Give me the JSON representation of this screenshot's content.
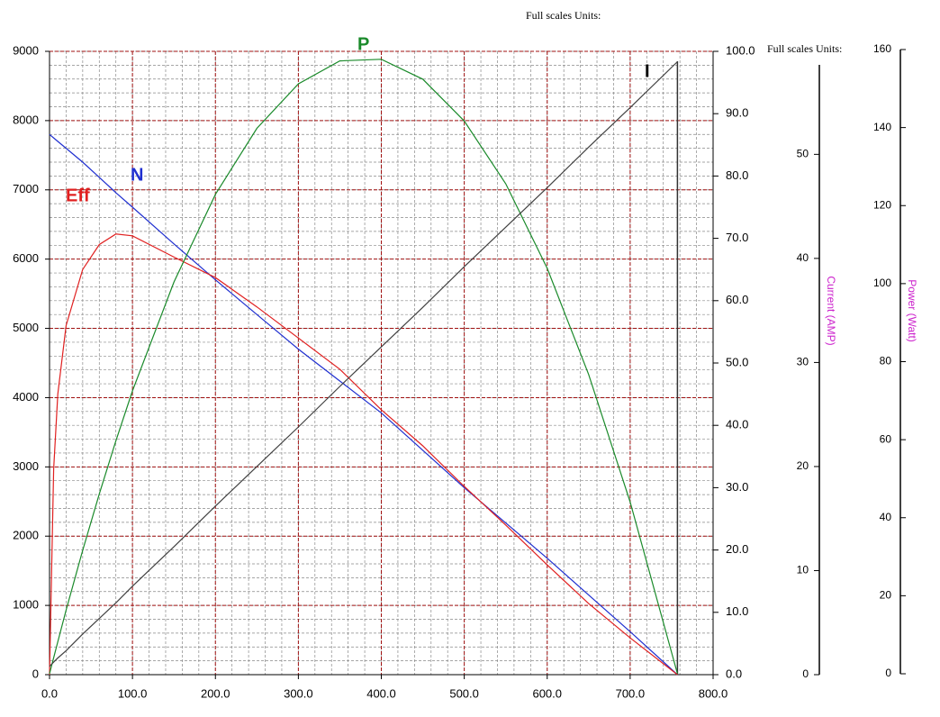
{
  "chart_data": {
    "type": "line",
    "headings": [
      "Full scales Units:",
      "Full scales Units:"
    ],
    "x": [
      0,
      5,
      10,
      20,
      40,
      60,
      80,
      100,
      150,
      200,
      250,
      300,
      350,
      400,
      450,
      500,
      550,
      600,
      650,
      700,
      757
    ],
    "series": [
      {
        "name": "N",
        "color": "#1f2fd0",
        "axis": "y",
        "values": [
          7800,
          7750,
          7700,
          7600,
          7400,
          7180,
          6960,
          6750,
          6220,
          5700,
          5200,
          4700,
          4240,
          3780,
          3240,
          2700,
          2190,
          1680,
          1150,
          620,
          0
        ]
      },
      {
        "name": "Eff",
        "color": "#e02020",
        "axis": "y2",
        "values": [
          0,
          33,
          45,
          56,
          65,
          69,
          70.7,
          70.4,
          67,
          63.7,
          59,
          54,
          49,
          42.5,
          36.7,
          30.2,
          24,
          17.6,
          11.4,
          5.9,
          0
        ]
      },
      {
        "name": "P",
        "color": "#1a8a2a",
        "axis": "y4",
        "values": [
          0,
          4.1,
          8.2,
          16.3,
          31.6,
          46.1,
          59.7,
          72.5,
          100.4,
          122.9,
          139.8,
          151.2,
          157.1,
          157.5,
          152.4,
          141.7,
          125.6,
          103.9,
          76.7,
          44.0,
          0
        ]
      },
      {
        "name": "I",
        "color": "#404040",
        "axis": "y3",
        "values": [
          0.8,
          1.2,
          1.6,
          2.3,
          3.9,
          5.4,
          6.9,
          8.5,
          12.3,
          16.2,
          20.0,
          23.8,
          27.7,
          31.5,
          35.3,
          39.2,
          43.0,
          46.8,
          50.7,
          54.5,
          58.9
        ]
      }
    ],
    "label_colors": {
      "N": "#1f2fd0",
      "Eff": "#e02020",
      "P": "#1a8a2a",
      "I": "#000000"
    },
    "xlim": [
      0,
      800
    ],
    "xticks": [
      {
        "value": 0,
        "label": "0.0"
      },
      {
        "value": 100,
        "label": "100.0"
      },
      {
        "value": 200,
        "label": "200.0"
      },
      {
        "value": 300,
        "label": "300.0"
      },
      {
        "value": 400,
        "label": "400.0"
      },
      {
        "value": 500,
        "label": "500.0"
      },
      {
        "value": 600,
        "label": "600.0"
      },
      {
        "value": 700,
        "label": "700.0"
      },
      {
        "value": 800,
        "label": "800.0"
      }
    ],
    "ylim": [
      0,
      9000
    ],
    "yticks": [
      0,
      1000,
      2000,
      3000,
      4000,
      5000,
      6000,
      7000,
      8000,
      9000
    ],
    "y2lim": [
      0,
      100
    ],
    "y2ticks": [
      {
        "value": 0,
        "label": "0.0"
      },
      {
        "value": 10,
        "label": "10.0"
      },
      {
        "value": 20,
        "label": "20.0"
      },
      {
        "value": 30,
        "label": "30.0"
      },
      {
        "value": 40,
        "label": "40.0"
      },
      {
        "value": 50,
        "label": "50.0"
      },
      {
        "value": 60,
        "label": "60.0"
      },
      {
        "value": 70,
        "label": "70.0"
      },
      {
        "value": 80,
        "label": "80.0"
      },
      {
        "value": 90,
        "label": "90.0"
      },
      {
        "value": 100,
        "label": "100.0"
      }
    ],
    "y3label": "Current (AMP)",
    "y3lim": [
      0,
      58.6
    ],
    "y3ticks": [
      0,
      10,
      20,
      30,
      40,
      50
    ],
    "y4label": "Power (Watt)",
    "y4lim": [
      0,
      160
    ],
    "y4ticks": [
      0,
      20,
      40,
      60,
      80,
      100,
      120,
      140,
      160
    ],
    "grid": true,
    "minor_grid": {
      "x": 20,
      "y": 200
    }
  }
}
